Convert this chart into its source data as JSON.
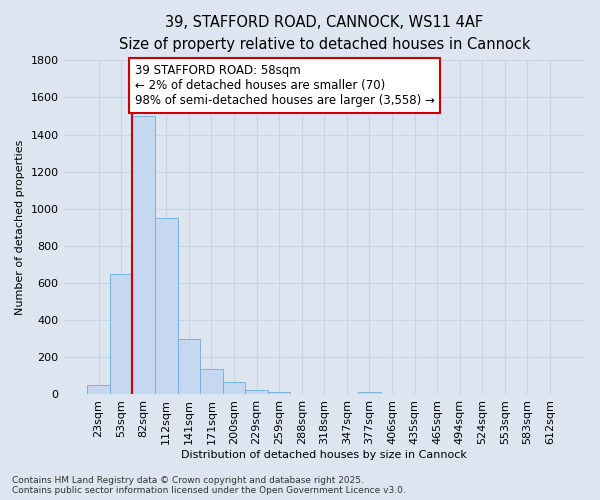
{
  "title1": "39, STAFFORD ROAD, CANNOCK, WS11 4AF",
  "title2": "Size of property relative to detached houses in Cannock",
  "xlabel": "Distribution of detached houses by size in Cannock",
  "ylabel": "Number of detached properties",
  "bin_labels": [
    "23sqm",
    "53sqm",
    "82sqm",
    "112sqm",
    "141sqm",
    "171sqm",
    "200sqm",
    "229sqm",
    "259sqm",
    "288sqm",
    "318sqm",
    "347sqm",
    "377sqm",
    "406sqm",
    "435sqm",
    "465sqm",
    "494sqm",
    "524sqm",
    "553sqm",
    "583sqm",
    "612sqm"
  ],
  "bar_heights": [
    50,
    650,
    1500,
    950,
    300,
    135,
    65,
    25,
    15,
    5,
    5,
    5,
    15,
    0,
    0,
    0,
    0,
    0,
    0,
    0,
    0
  ],
  "bar_color": "#c5d8f0",
  "bar_edge_color": "#6aaee0",
  "grid_color": "#c8d4e8",
  "background_color": "#dde5f0",
  "vline_x": 1.5,
  "vline_color": "#cc0000",
  "annotation_text": "39 STAFFORD ROAD: 58sqm\n← 2% of detached houses are smaller (70)\n98% of semi-detached houses are larger (3,558) →",
  "annotation_box_color": "#ffffff",
  "annotation_box_edge": "#cc0000",
  "ylim": [
    0,
    1800
  ],
  "yticks": [
    0,
    200,
    400,
    600,
    800,
    1000,
    1200,
    1400,
    1600,
    1800
  ],
  "footnote": "Contains HM Land Registry data © Crown copyright and database right 2025.\nContains public sector information licensed under the Open Government Licence v3.0.",
  "title_fontsize": 10.5,
  "subtitle_fontsize": 9.5,
  "annotation_fontsize": 8.5,
  "footnote_fontsize": 6.5,
  "axis_fontsize": 8,
  "tick_fontsize": 8
}
